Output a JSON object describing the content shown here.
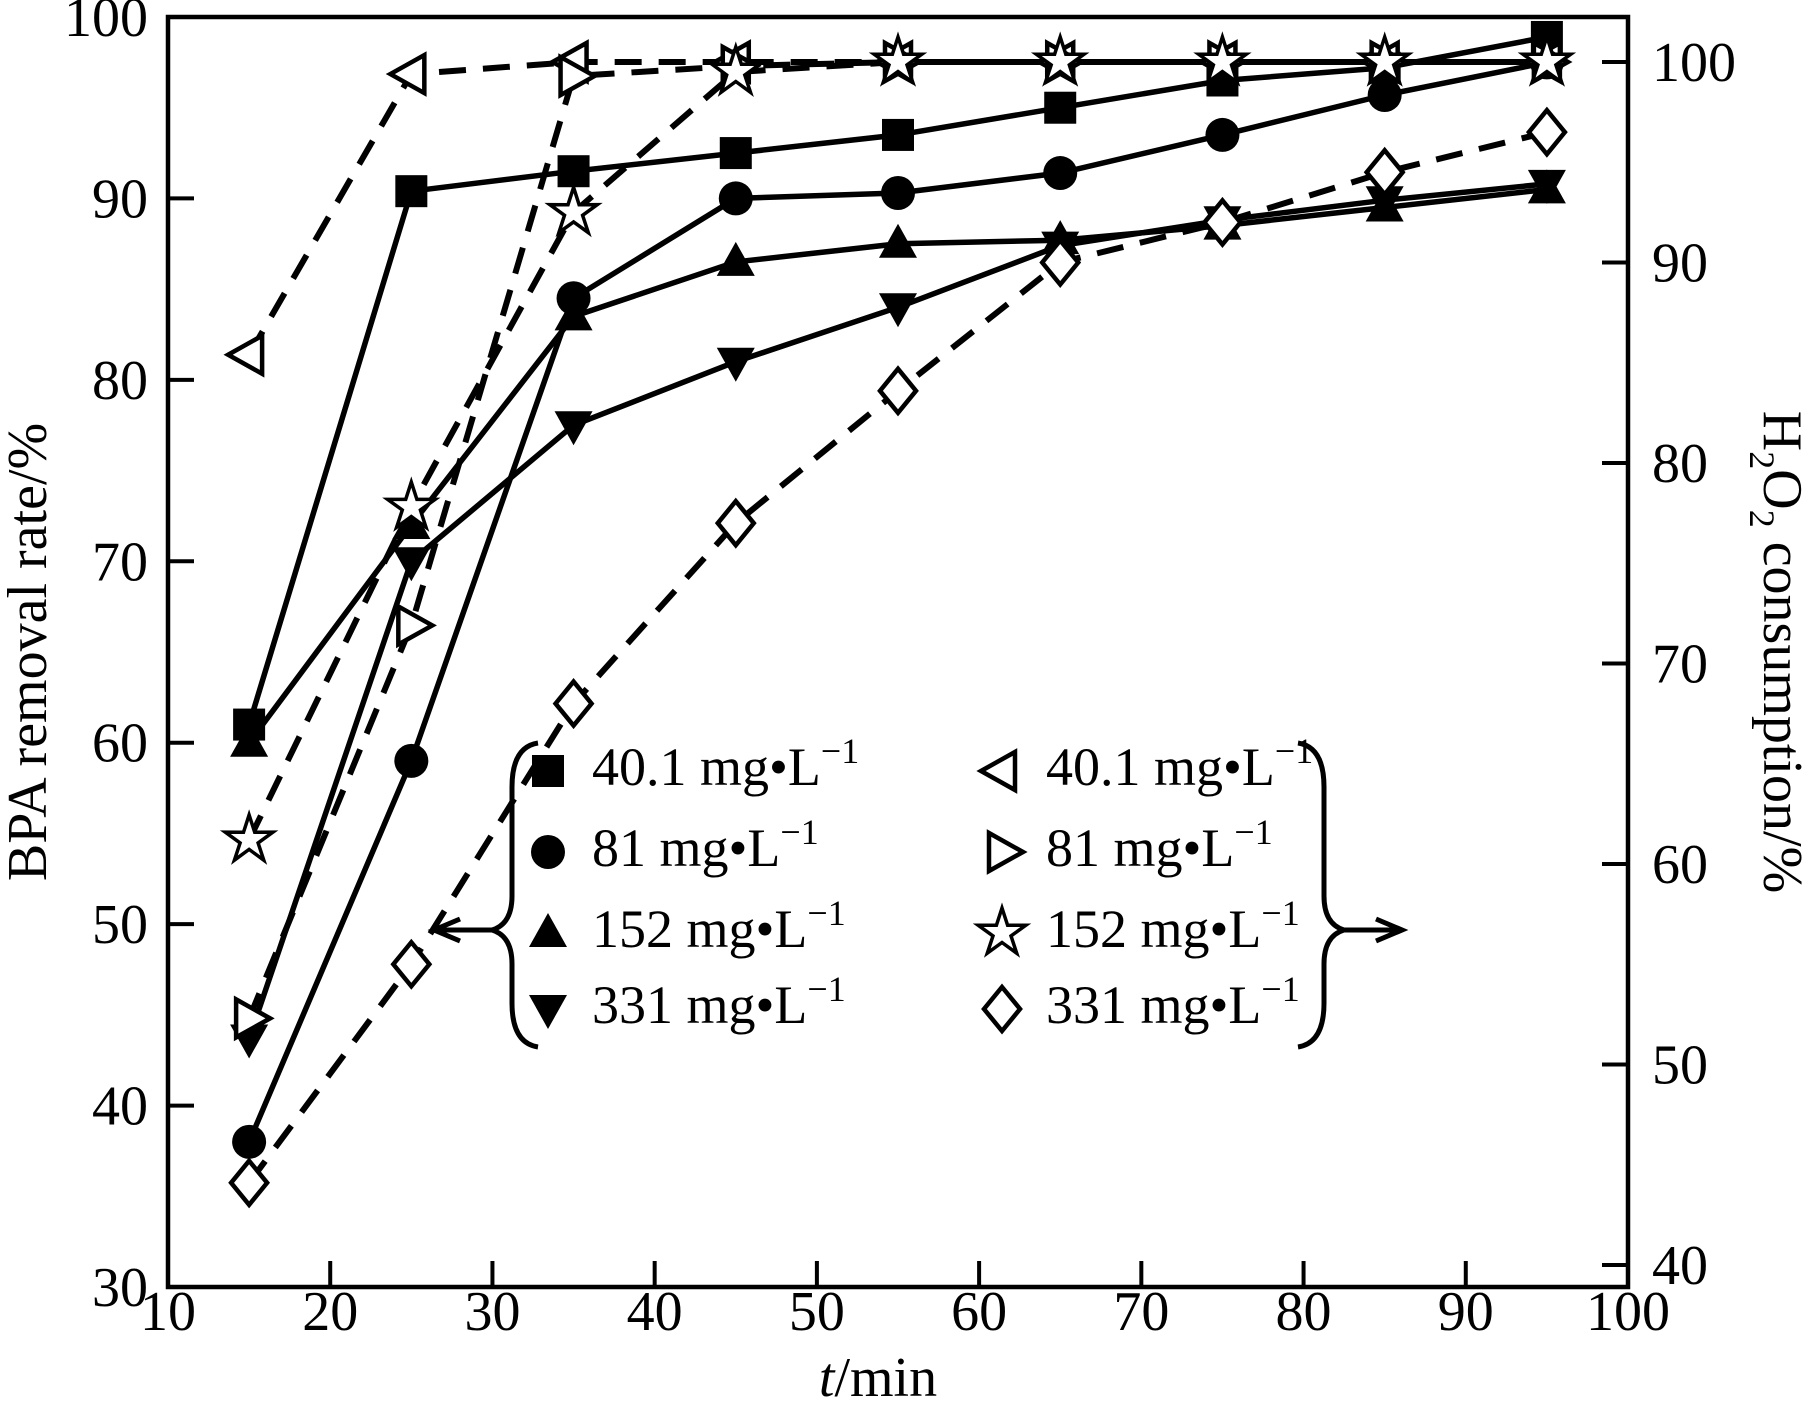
{
  "figure": {
    "background_color": "#ffffff",
    "foreground_color": "#000000"
  },
  "chart_data": {
    "type": "line",
    "grid": false,
    "x_axis": {
      "label_t": "t",
      "label_rest": "/min",
      "min": 10,
      "max": 100,
      "ticks": [
        10,
        20,
        30,
        40,
        50,
        60,
        70,
        80,
        90,
        100
      ]
    },
    "left_axis": {
      "label": "BPA removal rate/%",
      "min": 30,
      "max": 100,
      "ticks": [
        30,
        40,
        50,
        60,
        70,
        80,
        90,
        100
      ]
    },
    "right_axis": {
      "label_h": "H",
      "label_sub2": "2",
      "label_o": "O",
      "label_rest": " consumption/%",
      "min": 40,
      "max": 100,
      "ticks": [
        40,
        50,
        60,
        70,
        80,
        90,
        100
      ]
    },
    "x_values": [
      15,
      25,
      35,
      45,
      55,
      65,
      75,
      85,
      95
    ],
    "series": [
      {
        "name": "bpa-40.1",
        "axis": "left",
        "line": "solid",
        "marker": "square-filled",
        "values": [
          61,
          90.4,
          91.5,
          92.5,
          93.5,
          95,
          96.5,
          97.2,
          98.9
        ]
      },
      {
        "name": "bpa-81",
        "axis": "left",
        "line": "solid",
        "marker": "circle-filled",
        "values": [
          38,
          59,
          84.5,
          90,
          90.3,
          91.4,
          93.5,
          95.7,
          97.5
        ]
      },
      {
        "name": "bpa-152",
        "axis": "left",
        "line": "solid",
        "marker": "triangle-up-filled",
        "values": [
          60,
          72,
          83.5,
          86.5,
          87.5,
          87.7,
          88.5,
          89.5,
          90.5
        ]
      },
      {
        "name": "bpa-331",
        "axis": "left",
        "line": "solid",
        "marker": "triangle-down-filled",
        "values": [
          43.7,
          70,
          77.5,
          81,
          84,
          87.4,
          88.8,
          89.9,
          90.8
        ]
      },
      {
        "name": "h2o2-40.1",
        "axis": "right",
        "line": "dashed",
        "marker": "triangle-left-open",
        "values": [
          85.4,
          99.4,
          100,
          100,
          100,
          100,
          100,
          100,
          100
        ]
      },
      {
        "name": "h2o2-81",
        "axis": "right",
        "line": "dashed",
        "marker": "triangle-right-open",
        "values": [
          52.3,
          71.9,
          99.3,
          99.8,
          100,
          100,
          100,
          100,
          100
        ]
      },
      {
        "name": "h2o2-152",
        "axis": "right",
        "line": "dashed",
        "marker": "star-open",
        "values": [
          61.2,
          77.8,
          92.5,
          99.5,
          100,
          100,
          100,
          100,
          100
        ]
      },
      {
        "name": "h2o2-331",
        "axis": "right",
        "line": "dashed",
        "marker": "diamond-open",
        "values": [
          44.1,
          55,
          68,
          77,
          83.6,
          90,
          92,
          94.5,
          96.5
        ]
      }
    ],
    "legend": {
      "left_group": {
        "arrow": "left",
        "items": [
          {
            "marker": "square-filled",
            "conc": "40.1",
            "unit": " mg•L",
            "sup": "−1"
          },
          {
            "marker": "circle-filled",
            "conc": "81",
            "unit": " mg•L",
            "sup": "−1"
          },
          {
            "marker": "triangle-up-filled",
            "conc": "152",
            "unit": " mg•L",
            "sup": "−1"
          },
          {
            "marker": "triangle-down-filled",
            "conc": "331",
            "unit": " mg•L",
            "sup": "−1"
          }
        ]
      },
      "right_group": {
        "arrow": "right",
        "items": [
          {
            "marker": "triangle-left-open",
            "conc": "40.1",
            "unit": " mg•L",
            "sup": "−1"
          },
          {
            "marker": "triangle-right-open",
            "conc": "81",
            "unit": " mg•L",
            "sup": "−1"
          },
          {
            "marker": "star-open",
            "conc": "152",
            "unit": " mg•L",
            "sup": "−1"
          },
          {
            "marker": "diamond-open",
            "conc": "331",
            "unit": " mg•L",
            "sup": "−1"
          }
        ]
      }
    }
  }
}
